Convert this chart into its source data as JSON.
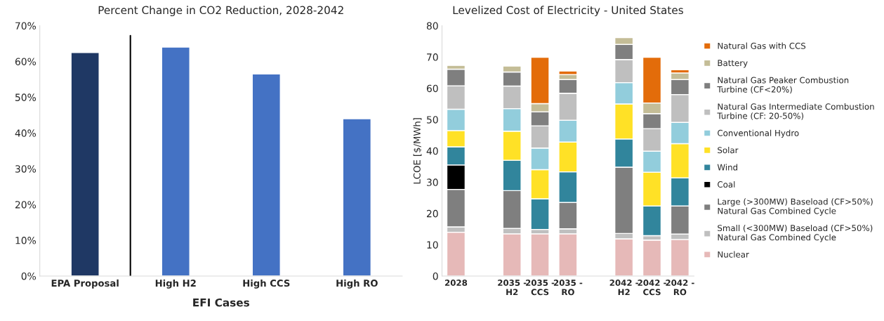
{
  "chart_data": [
    {
      "type": "bar",
      "title": "Percent Change in CO2 Reduction, 2028-2042",
      "xlabel": "EFI Cases",
      "categories": [
        "EPA Proposal",
        "High H2",
        "High CCS",
        "High RO"
      ],
      "values": [
        62.5,
        64,
        56.5,
        44
      ],
      "colors": [
        "#1f3864",
        "#4472c4",
        "#4472c4",
        "#4472c4"
      ],
      "ylim": [
        0,
        70
      ],
      "yticks": [
        {
          "value": 0,
          "label": "0%"
        },
        {
          "value": 10,
          "label": "10%"
        },
        {
          "value": 20,
          "label": "20%"
        },
        {
          "value": 30,
          "label": "30%"
        },
        {
          "value": 40,
          "label": "40%"
        },
        {
          "value": 50,
          "label": "50%"
        },
        {
          "value": 60,
          "label": "60%"
        },
        {
          "value": 70,
          "label": "70%"
        }
      ],
      "grid": false
    },
    {
      "type": "bar",
      "title": "Levelized Cost of Electricity - United States",
      "ylabel": "LCOE [$/MWh]",
      "stacked": true,
      "categories": [
        "2028",
        null,
        "2035 -\nH2",
        "2035 -\nCCS",
        "2035 -\nRO",
        null,
        "2042 -\nH2",
        "2042 -\nCCS",
        "2042 -\nRO"
      ],
      "series": [
        {
          "name": "Nuclear",
          "color": "#e6b9b8",
          "values": [
            14.0,
            null,
            13.5,
            13.5,
            13.5,
            null,
            11.9,
            11.5,
            11.7
          ]
        },
        {
          "name": "Small (<300MW) Baseload (CF>50%)\nNatural Gas Combined Cycle",
          "color": "#bfbfbf",
          "values": [
            1.7,
            null,
            1.7,
            1.4,
            1.6,
            null,
            1.7,
            1.4,
            1.7
          ]
        },
        {
          "name": "Large (>300MW) Baseload (CF>50%)\nNatural Gas Combined Cycle",
          "color": "#7f7f7f",
          "values": [
            12.0,
            null,
            12.1,
            null,
            8.4,
            null,
            21.2,
            null,
            9.0
          ]
        },
        {
          "name": "Coal",
          "color": "#000000",
          "values": [
            7.8,
            null,
            null,
            null,
            null,
            null,
            null,
            null,
            null
          ]
        },
        {
          "name": "Wind",
          "color": "#31859c",
          "values": [
            5.8,
            null,
            9.7,
            9.8,
            9.8,
            null,
            9.0,
            9.5,
            9.0
          ]
        },
        {
          "name": "Solar",
          "color": "#ffe126",
          "values": [
            5.2,
            null,
            9.3,
            9.3,
            9.5,
            null,
            11.2,
            10.8,
            10.9
          ]
        },
        {
          "name": "Conventional Hydro",
          "color": "#92cddc",
          "values": [
            6.8,
            null,
            7.2,
            6.9,
            7.0,
            null,
            6.8,
            6.7,
            6.8
          ]
        },
        {
          "name": "Natural Gas Intermediate Combustion\nTurbine (CF: 20-50%)",
          "color": "#bfbfbf",
          "values": [
            7.5,
            null,
            7.2,
            7.1,
            8.6,
            null,
            7.4,
            7.2,
            8.9
          ]
        },
        {
          "name": "Natural Gas Peaker Combustion\nTurbine (CF<20%)",
          "color": "#7f7f7f",
          "values": [
            5.3,
            null,
            4.5,
            4.5,
            4.4,
            null,
            4.8,
            4.8,
            4.8
          ]
        },
        {
          "name": "Battery",
          "color": "#c4bd97",
          "values": [
            1.2,
            null,
            1.9,
            2.6,
            1.6,
            null,
            2.2,
            3.4,
            2.1
          ]
        },
        {
          "name": "Natural Gas with CCS",
          "color": "#e36c0a",
          "values": [
            null,
            null,
            null,
            14.8,
            1.1,
            null,
            null,
            14.6,
            1.0
          ]
        }
      ],
      "ylim": [
        0,
        80
      ],
      "yticks": [
        0,
        10,
        20,
        30,
        40,
        50,
        60,
        70,
        80
      ],
      "grid": false,
      "legend": "right"
    }
  ]
}
